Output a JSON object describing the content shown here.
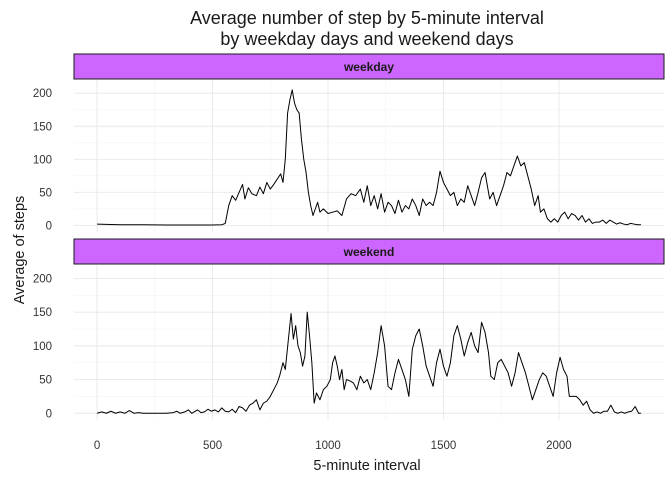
{
  "chart_data": {
    "type": "line",
    "title_line1": "Average number of step by 5-minute interval",
    "title_line2": "by weekday days and weekend days",
    "xlabel": "5-minute interval",
    "ylabel": "Average of steps",
    "xlim": [
      -100,
      2455
    ],
    "ylim": [
      -10,
      220
    ],
    "x_ticks": [
      0,
      500,
      1000,
      1500,
      2000
    ],
    "y_ticks": [
      0,
      50,
      100,
      150,
      200
    ],
    "grid": true,
    "strip_color": "#cc66ff",
    "line_color": "#000000",
    "panels": [
      {
        "label": "weekday",
        "points": [
          [
            0,
            2
          ],
          [
            100,
            1
          ],
          [
            200,
            1
          ],
          [
            300,
            0.5
          ],
          [
            400,
            0.5
          ],
          [
            500,
            0.5
          ],
          [
            540,
            1
          ],
          [
            555,
            3
          ],
          [
            570,
            30
          ],
          [
            585,
            45
          ],
          [
            600,
            38
          ],
          [
            615,
            50
          ],
          [
            630,
            62
          ],
          [
            640,
            40
          ],
          [
            655,
            57
          ],
          [
            670,
            48
          ],
          [
            690,
            45
          ],
          [
            705,
            58
          ],
          [
            720,
            48
          ],
          [
            735,
            65
          ],
          [
            750,
            55
          ],
          [
            765,
            62
          ],
          [
            780,
            70
          ],
          [
            795,
            78
          ],
          [
            805,
            65
          ],
          [
            815,
            100
          ],
          [
            825,
            170
          ],
          [
            835,
            190
          ],
          [
            845,
            205
          ],
          [
            855,
            185
          ],
          [
            865,
            175
          ],
          [
            875,
            170
          ],
          [
            885,
            130
          ],
          [
            895,
            100
          ],
          [
            905,
            80
          ],
          [
            915,
            50
          ],
          [
            925,
            30
          ],
          [
            935,
            15
          ],
          [
            945,
            25
          ],
          [
            955,
            35
          ],
          [
            965,
            20
          ],
          [
            980,
            25
          ],
          [
            1000,
            18
          ],
          [
            1020,
            20
          ],
          [
            1040,
            22
          ],
          [
            1060,
            15
          ],
          [
            1080,
            40
          ],
          [
            1100,
            48
          ],
          [
            1120,
            45
          ],
          [
            1140,
            55
          ],
          [
            1155,
            35
          ],
          [
            1170,
            60
          ],
          [
            1185,
            30
          ],
          [
            1200,
            45
          ],
          [
            1215,
            25
          ],
          [
            1230,
            48
          ],
          [
            1245,
            20
          ],
          [
            1260,
            35
          ],
          [
            1275,
            30
          ],
          [
            1290,
            18
          ],
          [
            1305,
            38
          ],
          [
            1320,
            20
          ],
          [
            1335,
            30
          ],
          [
            1350,
            25
          ],
          [
            1365,
            40
          ],
          [
            1380,
            30
          ],
          [
            1395,
            15
          ],
          [
            1410,
            40
          ],
          [
            1425,
            30
          ],
          [
            1440,
            35
          ],
          [
            1455,
            30
          ],
          [
            1470,
            50
          ],
          [
            1485,
            82
          ],
          [
            1500,
            65
          ],
          [
            1515,
            55
          ],
          [
            1530,
            45
          ],
          [
            1545,
            50
          ],
          [
            1560,
            30
          ],
          [
            1575,
            40
          ],
          [
            1590,
            35
          ],
          [
            1605,
            60
          ],
          [
            1620,
            45
          ],
          [
            1635,
            30
          ],
          [
            1650,
            50
          ],
          [
            1665,
            72
          ],
          [
            1680,
            80
          ],
          [
            1690,
            60
          ],
          [
            1700,
            40
          ],
          [
            1715,
            50
          ],
          [
            1730,
            30
          ],
          [
            1745,
            45
          ],
          [
            1760,
            60
          ],
          [
            1775,
            80
          ],
          [
            1790,
            75
          ],
          [
            1805,
            90
          ],
          [
            1820,
            105
          ],
          [
            1835,
            90
          ],
          [
            1850,
            95
          ],
          [
            1865,
            75
          ],
          [
            1880,
            55
          ],
          [
            1895,
            30
          ],
          [
            1910,
            45
          ],
          [
            1920,
            20
          ],
          [
            1935,
            25
          ],
          [
            1950,
            10
          ],
          [
            1965,
            5
          ],
          [
            1980,
            10
          ],
          [
            1995,
            5
          ],
          [
            2010,
            15
          ],
          [
            2025,
            20
          ],
          [
            2040,
            10
          ],
          [
            2055,
            18
          ],
          [
            2070,
            15
          ],
          [
            2085,
            8
          ],
          [
            2100,
            15
          ],
          [
            2115,
            5
          ],
          [
            2130,
            10
          ],
          [
            2145,
            3
          ],
          [
            2160,
            5
          ],
          [
            2175,
            5
          ],
          [
            2190,
            8
          ],
          [
            2205,
            3
          ],
          [
            2220,
            8
          ],
          [
            2235,
            5
          ],
          [
            2250,
            2
          ],
          [
            2265,
            4
          ],
          [
            2280,
            2
          ],
          [
            2295,
            1
          ],
          [
            2310,
            3
          ],
          [
            2325,
            2
          ],
          [
            2340,
            1
          ],
          [
            2355,
            1
          ]
        ]
      },
      {
        "label": "weekend",
        "points": [
          [
            0,
            0
          ],
          [
            20,
            2
          ],
          [
            40,
            0
          ],
          [
            60,
            3
          ],
          [
            80,
            0
          ],
          [
            100,
            2
          ],
          [
            120,
            0
          ],
          [
            140,
            4
          ],
          [
            160,
            0
          ],
          [
            180,
            1
          ],
          [
            200,
            0
          ],
          [
            300,
            0
          ],
          [
            330,
            1
          ],
          [
            345,
            3
          ],
          [
            360,
            0
          ],
          [
            380,
            2
          ],
          [
            395,
            5
          ],
          [
            410,
            0
          ],
          [
            420,
            2
          ],
          [
            435,
            5
          ],
          [
            450,
            1
          ],
          [
            465,
            2
          ],
          [
            480,
            6
          ],
          [
            495,
            3
          ],
          [
            510,
            5
          ],
          [
            525,
            2
          ],
          [
            540,
            8
          ],
          [
            555,
            3
          ],
          [
            570,
            2
          ],
          [
            585,
            6
          ],
          [
            600,
            1
          ],
          [
            615,
            10
          ],
          [
            630,
            8
          ],
          [
            645,
            3
          ],
          [
            660,
            12
          ],
          [
            675,
            15
          ],
          [
            690,
            20
          ],
          [
            705,
            5
          ],
          [
            720,
            15
          ],
          [
            735,
            18
          ],
          [
            750,
            25
          ],
          [
            765,
            35
          ],
          [
            780,
            45
          ],
          [
            790,
            55
          ],
          [
            805,
            75
          ],
          [
            815,
            65
          ],
          [
            830,
            115
          ],
          [
            840,
            148
          ],
          [
            850,
            110
          ],
          [
            860,
            130
          ],
          [
            870,
            100
          ],
          [
            880,
            90
          ],
          [
            890,
            70
          ],
          [
            900,
            85
          ],
          [
            910,
            150
          ],
          [
            920,
            115
          ],
          [
            930,
            75
          ],
          [
            940,
            15
          ],
          [
            950,
            30
          ],
          [
            965,
            20
          ],
          [
            980,
            35
          ],
          [
            995,
            40
          ],
          [
            1010,
            50
          ],
          [
            1020,
            75
          ],
          [
            1030,
            85
          ],
          [
            1040,
            70
          ],
          [
            1050,
            50
          ],
          [
            1060,
            65
          ],
          [
            1070,
            35
          ],
          [
            1080,
            50
          ],
          [
            1095,
            48
          ],
          [
            1110,
            45
          ],
          [
            1125,
            35
          ],
          [
            1140,
            55
          ],
          [
            1155,
            45
          ],
          [
            1170,
            50
          ],
          [
            1185,
            35
          ],
          [
            1200,
            60
          ],
          [
            1215,
            90
          ],
          [
            1230,
            130
          ],
          [
            1245,
            100
          ],
          [
            1260,
            40
          ],
          [
            1275,
            35
          ],
          [
            1290,
            60
          ],
          [
            1305,
            80
          ],
          [
            1320,
            65
          ],
          [
            1335,
            50
          ],
          [
            1350,
            25
          ],
          [
            1365,
            95
          ],
          [
            1380,
            115
          ],
          [
            1395,
            125
          ],
          [
            1410,
            100
          ],
          [
            1425,
            70
          ],
          [
            1440,
            55
          ],
          [
            1455,
            40
          ],
          [
            1470,
            75
          ],
          [
            1485,
            95
          ],
          [
            1500,
            70
          ],
          [
            1515,
            55
          ],
          [
            1530,
            75
          ],
          [
            1545,
            115
          ],
          [
            1560,
            130
          ],
          [
            1575,
            110
          ],
          [
            1590,
            85
          ],
          [
            1605,
            105
          ],
          [
            1620,
            120
          ],
          [
            1635,
            100
          ],
          [
            1650,
            90
          ],
          [
            1665,
            135
          ],
          [
            1680,
            120
          ],
          [
            1695,
            90
          ],
          [
            1705,
            55
          ],
          [
            1720,
            50
          ],
          [
            1735,
            75
          ],
          [
            1750,
            80
          ],
          [
            1765,
            70
          ],
          [
            1780,
            60
          ],
          [
            1795,
            40
          ],
          [
            1810,
            60
          ],
          [
            1825,
            90
          ],
          [
            1840,
            75
          ],
          [
            1855,
            60
          ],
          [
            1870,
            40
          ],
          [
            1885,
            20
          ],
          [
            1900,
            35
          ],
          [
            1915,
            50
          ],
          [
            1930,
            60
          ],
          [
            1945,
            55
          ],
          [
            1960,
            40
          ],
          [
            1975,
            25
          ],
          [
            1990,
            60
          ],
          [
            2005,
            83
          ],
          [
            2020,
            65
          ],
          [
            2035,
            55
          ],
          [
            2045,
            25
          ],
          [
            2060,
            25
          ],
          [
            2075,
            25
          ],
          [
            2090,
            20
          ],
          [
            2105,
            12
          ],
          [
            2120,
            18
          ],
          [
            2135,
            5
          ],
          [
            2150,
            0
          ],
          [
            2165,
            2
          ],
          [
            2180,
            0
          ],
          [
            2195,
            3
          ],
          [
            2210,
            3
          ],
          [
            2225,
            12
          ],
          [
            2240,
            2
          ],
          [
            2255,
            0
          ],
          [
            2270,
            2
          ],
          [
            2285,
            0
          ],
          [
            2300,
            2
          ],
          [
            2315,
            3
          ],
          [
            2330,
            10
          ],
          [
            2345,
            0
          ],
          [
            2355,
            0
          ]
        ]
      }
    ]
  }
}
